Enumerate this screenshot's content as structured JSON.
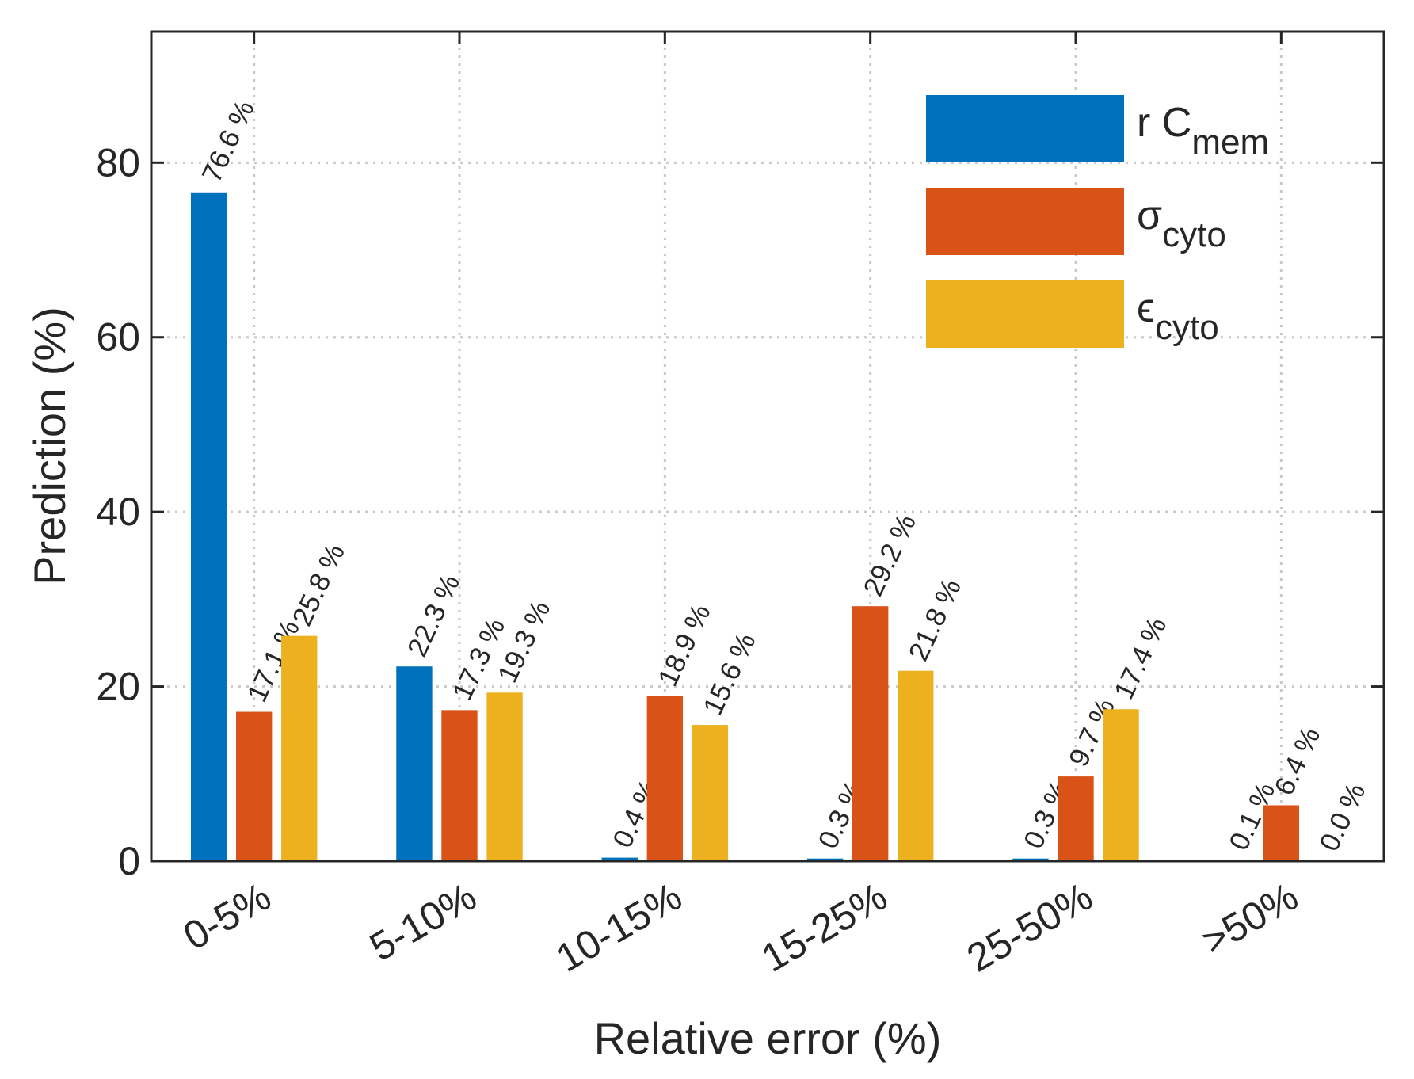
{
  "chart_data": {
    "type": "bar",
    "xlabel": "Relative error (%)",
    "ylabel": "Prediction (%)",
    "categories": [
      "0-5%",
      "5-10%",
      "10-15%",
      "15-25%",
      "25-50%",
      ">50%"
    ],
    "series": [
      {
        "name": "r C",
        "name_sub": "mem",
        "color": "#0072bd",
        "values": [
          76.6,
          22.3,
          0.4,
          0.3,
          0.3,
          0.1
        ],
        "value_labels": [
          "76.6 %",
          "22.3 %",
          "0.4 %",
          "0.3 %",
          "0.3 %",
          "0.1 %"
        ]
      },
      {
        "name": "σ",
        "name_sub": "cyto",
        "color": "#d95319",
        "values": [
          17.1,
          17.3,
          18.9,
          29.2,
          9.7,
          6.4
        ],
        "value_labels": [
          "17.1 %",
          "17.3 %",
          "18.9 %",
          "29.2 %",
          "9.7 %",
          "6.4 %"
        ]
      },
      {
        "name": "ϵ",
        "name_sub": "cyto",
        "color": "#edb120",
        "values": [
          25.8,
          19.3,
          15.6,
          21.8,
          17.4,
          0.0
        ],
        "value_labels": [
          "25.8 %",
          "19.3 %",
          "15.6 %",
          "21.8 %",
          "17.4 %",
          "0.0 %"
        ]
      }
    ],
    "ylim": [
      0,
      95
    ],
    "yticks": [
      0,
      20,
      40,
      60,
      80
    ],
    "grid": true,
    "legend": "upper right"
  }
}
